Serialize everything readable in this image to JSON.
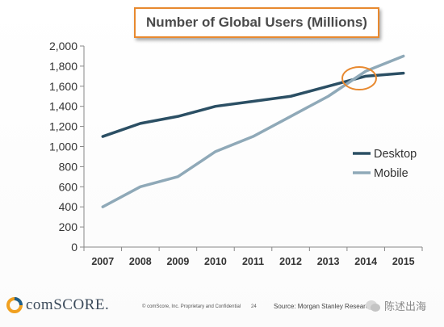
{
  "title": "Number of Global Users (Millions)",
  "footer": {
    "logo_text": "comSCORE.",
    "copyright": "© comScore, Inc.  Proprietary and Confidential",
    "page_number": "24",
    "source": "Source: Morgan Stanley Research",
    "watermark": "陈述出海"
  },
  "colors": {
    "desktop": "#2b4f64",
    "mobile": "#8fa9b8",
    "highlight": "#e8892f",
    "title_border": "#e8892f",
    "logo_orange": "#f0a020",
    "logo_blue": "#1f5f8b"
  },
  "chart_data": {
    "type": "line",
    "title": "Number of Global Users (Millions)",
    "categories": [
      "2007",
      "2008",
      "2009",
      "2010",
      "2011",
      "2012",
      "2013",
      "2014",
      "2015"
    ],
    "series": [
      {
        "name": "Desktop",
        "values": [
          1100,
          1230,
          1300,
          1400,
          1450,
          1500,
          1600,
          1700,
          1730
        ]
      },
      {
        "name": "Mobile",
        "values": [
          400,
          600,
          700,
          950,
          1100,
          1300,
          1500,
          1750,
          1900
        ]
      }
    ],
    "y_ticks": [
      "0",
      "200",
      "400",
      "600",
      "800",
      "1,000",
      "1,200",
      "1,400",
      "1,600",
      "1,800",
      "2,000"
    ],
    "ylim": [
      0,
      2000
    ],
    "grid": "horizontal",
    "legend": "right",
    "highlight": "crossover circled between 2013 and 2014"
  }
}
